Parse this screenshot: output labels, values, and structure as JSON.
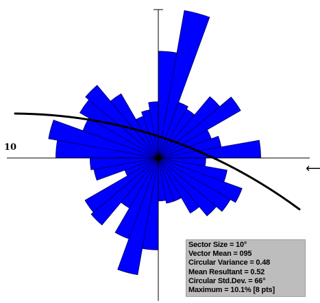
{
  "chart_data": {
    "type": "rose",
    "sector_size_deg": 10,
    "directions_deg": [
      5,
      15,
      25,
      35,
      45,
      55,
      65,
      75,
      85,
      95,
      105,
      115,
      125,
      135,
      145,
      155,
      165,
      175,
      185,
      195,
      205,
      215,
      225,
      235,
      245,
      255,
      265,
      275,
      285,
      295,
      305,
      315,
      325,
      335,
      345,
      355
    ],
    "values_pct": [
      7.2,
      10.1,
      4.0,
      3.8,
      5.4,
      6.4,
      3.8,
      4.3,
      6.9,
      3.2,
      4.7,
      6.0,
      5.6,
      5.1,
      4.3,
      3.1,
      3.1,
      2.9,
      6.2,
      8.0,
      5.8,
      3.9,
      5.9,
      5.7,
      2.4,
      4.4,
      4.6,
      6.9,
      7.5,
      5.4,
      6.1,
      6.4,
      5.0,
      3.0,
      3.3,
      3.8
    ],
    "max_value_pct": 10.1,
    "tick_label": "10",
    "fit_line": {
      "type": "great-circle-arc",
      "direction_deg": 95
    },
    "stats": [
      "Sector Size = 10°",
      "Vector Mean = 095",
      "Circular Variance = 0.48",
      "Mean Resultant = 0.52",
      "Circular Std.Dev. = 66°",
      "Maximum = 10.1%  [8 pts]"
    ],
    "colors": {
      "fill": "#0000ff",
      "edge": "#000040",
      "axis": "#000000",
      "stats_bg": "#bdbdbd"
    }
  }
}
